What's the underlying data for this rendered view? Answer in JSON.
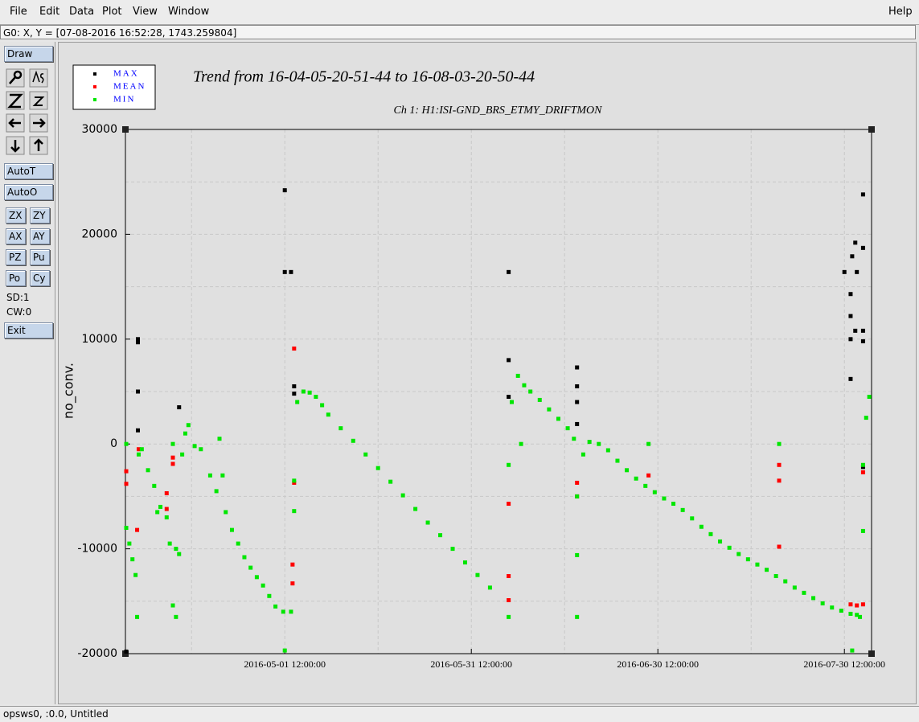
{
  "menu": [
    "File",
    "Edit",
    "Data",
    "Plot",
    "View",
    "Window"
  ],
  "help": "Help",
  "status": "G0: X, Y = [07-08-2016 16:52:28, 1743.259804]",
  "toolbar": {
    "draw": "Draw",
    "auto": [
      "AutoT",
      "AutoO"
    ],
    "grid": [
      "ZX",
      "ZY",
      "AX",
      "AY",
      "PZ",
      "Pu",
      "Po",
      "Cy"
    ],
    "info": [
      "SD:1",
      "CW:0"
    ],
    "exit": "Exit"
  },
  "footer": "opsws0, :0.0, Untitled",
  "chart_data": {
    "type": "scatter",
    "title": "Trend from 16-04-05-20-51-44 to 16-08-03-20-50-44",
    "subtitle": "Ch 1: H1:ISI-GND_BRS_ETMY_DRIFTMON",
    "y_label": "no_conv.",
    "xlim": [
      "2016-04-05 20:51:44",
      "2016-08-03 20:50:44"
    ],
    "xticks": [
      "2016-05-01 12:00:00",
      "2016-05-31 12:00:00",
      "2016-06-30 12:00:00",
      "2016-07-30 12:00:00"
    ],
    "xminor": [
      "2016-04-16 12:00:00",
      "2016-05-16 12:00:00",
      "2016-06-15 12:00:00",
      "2016-07-15 12:00:00"
    ],
    "ylim": [
      -20000,
      30000
    ],
    "yticks": [
      -20000,
      -10000,
      0,
      10000,
      20000,
      30000
    ],
    "yminor": [
      -15000,
      -5000,
      5000,
      15000,
      25000
    ],
    "grid": true,
    "legend": "top-left",
    "series": [
      {
        "name": "MAX",
        "color": "#000000",
        "x": [
          "2016-04-06 00:00",
          "2016-04-07 21:00",
          "2016-04-07 21:00",
          "2016-04-07 21:00",
          "2016-04-07 21:00",
          "2016-04-14 12:00",
          "2016-05-01 12:00",
          "2016-05-01 12:00",
          "2016-05-02 12:00",
          "2016-05-03 00:00",
          "2016-05-03 00:00",
          "2016-06-06 12:00",
          "2016-06-06 12:00",
          "2016-06-06 12:00",
          "2016-06-17 12:00",
          "2016-06-17 12:00",
          "2016-06-17 12:00",
          "2016-06-17 12:00",
          "2016-07-30 12:00",
          "2016-07-31 12:00",
          "2016-07-31 12:00",
          "2016-07-31 12:00",
          "2016-07-31 12:00",
          "2016-07-31 18:00",
          "2016-08-01 06:00",
          "2016-08-01 06:00",
          "2016-08-01 12:00",
          "2016-08-02 12:00",
          "2016-08-02 12:00",
          "2016-08-02 12:00",
          "2016-08-02 12:00",
          "2016-08-02 12:00"
        ],
        "values": [
          -19800,
          10000,
          9700,
          5000,
          1300,
          3500,
          24200,
          16400,
          16400,
          5500,
          4800,
          16400,
          8000,
          4500,
          7300,
          5500,
          4000,
          1900,
          16400,
          14300,
          12200,
          10000,
          6200,
          17900,
          19200,
          10800,
          16400,
          23800,
          18700,
          10800,
          9800,
          -2200
        ]
      },
      {
        "name": "MEAN",
        "color": "#ff0000",
        "x": [
          "2016-04-06 00:00",
          "2016-04-06 00:00",
          "2016-04-08 00:00",
          "2016-04-07 18:00",
          "2016-04-12 12:00",
          "2016-04-12 12:00",
          "2016-04-13 12:00",
          "2016-04-13 12:00",
          "2016-05-03 00:00",
          "2016-05-03 00:00",
          "2016-05-02 18:00",
          "2016-05-02 18:00",
          "2016-06-06 12:00",
          "2016-06-06 12:00",
          "2016-06-06 12:00",
          "2016-06-17 12:00",
          "2016-06-17 12:00",
          "2016-06-29 00:00",
          "2016-07-20 00:00",
          "2016-07-20 00:00",
          "2016-07-20 00:00",
          "2016-07-31 12:00",
          "2016-08-01 12:00",
          "2016-08-02 12:00",
          "2016-08-02 12:00"
        ],
        "values": [
          -2600,
          -3800,
          -500,
          -8200,
          -4700,
          -6200,
          -1300,
          -1900,
          9100,
          -3700,
          -13300,
          -11500,
          -12600,
          -14900,
          -5700,
          -3700,
          -5000,
          -3000,
          -2000,
          -3500,
          -9800,
          -15300,
          -15400,
          -15300,
          -2700
        ]
      },
      {
        "name": "MIN",
        "color": "#00e600",
        "x": [
          "2016-04-06 00:00",
          "2016-04-06 12:00",
          "2016-04-07 00:00",
          "2016-04-07 12:00",
          "2016-04-08 00:00",
          "2016-04-08 12:00",
          "2016-04-09 12:00",
          "2016-04-10 12:00",
          "2016-04-11 00:00",
          "2016-04-11 12:00",
          "2016-04-12 12:00",
          "2016-04-13 00:00",
          "2016-04-14 00:00",
          "2016-04-14 12:00",
          "2016-04-15 00:00",
          "2016-04-15 12:00",
          "2016-04-16 00:00",
          "2016-04-17 00:00",
          "2016-04-18 00:00",
          "2016-04-19 12:00",
          "2016-04-20 12:00",
          "2016-04-21 00:00",
          "2016-04-21 12:00",
          "2016-04-22 00:00",
          "2016-04-23 00:00",
          "2016-04-24 00:00",
          "2016-04-25 00:00",
          "2016-04-26 00:00",
          "2016-04-27 00:00",
          "2016-04-28 00:00",
          "2016-04-29 00:00",
          "2016-04-30 00:00",
          "2016-05-01 06:00",
          "2016-05-02 12:00",
          "2016-05-03 00:00",
          "2016-05-03 12:00",
          "2016-05-04 12:00",
          "2016-05-05 12:00",
          "2016-05-06 12:00",
          "2016-05-07 12:00",
          "2016-05-08 12:00",
          "2016-05-10 12:00",
          "2016-05-12 12:00",
          "2016-05-14 12:00",
          "2016-05-16 12:00",
          "2016-05-18 12:00",
          "2016-05-20 12:00",
          "2016-05-22 12:00",
          "2016-05-24 12:00",
          "2016-05-26 12:00",
          "2016-05-28 12:00",
          "2016-05-30 12:00",
          "2016-06-01 12:00",
          "2016-06-03 12:00",
          "2016-06-06 12:00",
          "2016-06-07 00:00",
          "2016-06-08 00:00",
          "2016-06-09 00:00",
          "2016-06-10 00:00",
          "2016-06-11 12:00",
          "2016-06-13 00:00",
          "2016-06-14 12:00",
          "2016-06-16 00:00",
          "2016-06-17 00:00",
          "2016-06-17 12:00",
          "2016-06-18 12:00",
          "2016-06-19 12:00",
          "2016-06-21 00:00",
          "2016-06-22 12:00",
          "2016-06-24 00:00",
          "2016-06-25 12:00",
          "2016-06-27 00:00",
          "2016-06-28 12:00",
          "2016-06-30 00:00",
          "2016-07-01 12:00",
          "2016-07-03 00:00",
          "2016-07-04 12:00",
          "2016-07-06 00:00",
          "2016-07-07 12:00",
          "2016-07-09 00:00",
          "2016-07-10 12:00",
          "2016-07-12 00:00",
          "2016-07-13 12:00",
          "2016-07-15 00:00",
          "2016-07-16 12:00",
          "2016-07-18 00:00",
          "2016-07-19 12:00",
          "2016-07-21 00:00",
          "2016-07-22 12:00",
          "2016-07-24 00:00",
          "2016-07-25 12:00",
          "2016-07-27 00:00",
          "2016-07-28 12:00",
          "2016-07-30 00:00",
          "2016-07-31 12:00",
          "2016-08-01 12:00",
          "2016-08-02 00:00",
          "2016-08-02 12:00",
          "2016-08-03 00:00",
          "2016-08-03 12:00",
          "2016-04-06 00:00",
          "2016-04-07 18:00",
          "2016-04-13 12:00",
          "2016-04-14 00:00",
          "2016-04-13 12:00",
          "2016-05-03 00:00",
          "2016-05-01 12:00",
          "2016-06-06 12:00",
          "2016-06-08 12:00",
          "2016-06-17 12:00",
          "2016-06-17 12:00",
          "2016-06-29 00:00",
          "2016-07-20 00:00",
          "2016-08-02 12:00",
          "2016-07-31 18:00"
        ],
        "values": [
          -8000,
          -9500,
          -11000,
          -12500,
          -1000,
          -500,
          -2500,
          -4000,
          -6500,
          -6000,
          -7000,
          -9500,
          -10000,
          -10500,
          -1000,
          1000,
          1800,
          -200,
          -500,
          -3000,
          -4500,
          500,
          -3000,
          -6500,
          -8200,
          -9500,
          -10800,
          -11800,
          -12700,
          -13500,
          -14500,
          -15500,
          -16000,
          -16000,
          -3500,
          4000,
          5000,
          4900,
          4500,
          3700,
          2800,
          1500,
          300,
          -1000,
          -2300,
          -3600,
          -4900,
          -6200,
          -7500,
          -8700,
          -10000,
          -11300,
          -12500,
          -13700,
          -2000,
          4000,
          6500,
          5600,
          5000,
          4200,
          3300,
          2400,
          1500,
          500,
          -5000,
          -1000,
          200,
          0,
          -600,
          -1600,
          -2500,
          -3300,
          -4000,
          -4600,
          -5200,
          -5700,
          -6300,
          -7100,
          -7900,
          -8600,
          -9300,
          -9900,
          -10500,
          -11000,
          -11500,
          -12000,
          -12600,
          -13100,
          -13700,
          -14200,
          -14700,
          -15200,
          -15600,
          -15900,
          -16200,
          -16300,
          -16500,
          -2000,
          2500,
          4500,
          0,
          -16500,
          0,
          -16500,
          -15400,
          -6400,
          -19700,
          -16500,
          0,
          -16500,
          -10600,
          0,
          0,
          -8300,
          -19700
        ]
      }
    ]
  }
}
